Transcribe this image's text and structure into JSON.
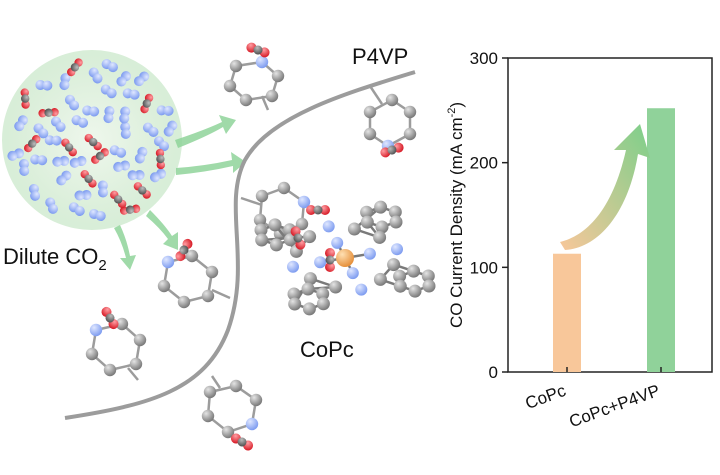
{
  "labels": {
    "dilute": "Dilute CO",
    "dilute_sub": "2",
    "polymer": "P4VP",
    "catalyst": "CoPc"
  },
  "colors": {
    "co2_oxygen": "#e0303a",
    "co2_carbon": "#6f6f6f",
    "n2": "#8ea8e8",
    "atom_grey": "#8e8e8e",
    "nitrogen": "#7f9df0",
    "cobalt": "#f2a95a",
    "bubble": "#dff0de",
    "arrow_green": "#7ccf8a",
    "bar_copc": "#f8c79a",
    "bar_copc_p4vp": "#90d29a"
  },
  "chart_data": {
    "type": "bar",
    "categories": [
      "CoPc",
      "CoPc+P4VP"
    ],
    "values": [
      113,
      252
    ],
    "ylabel": "CO Current Density (mA cm",
    "ylabel_sup": "-2",
    "ylabel_close": ")",
    "ylim": [
      0,
      300
    ],
    "yticks": [
      0,
      100,
      200,
      300
    ],
    "grid": false,
    "annotation": "arrow pointing from CoPc bar up to CoPc+P4VP bar"
  }
}
